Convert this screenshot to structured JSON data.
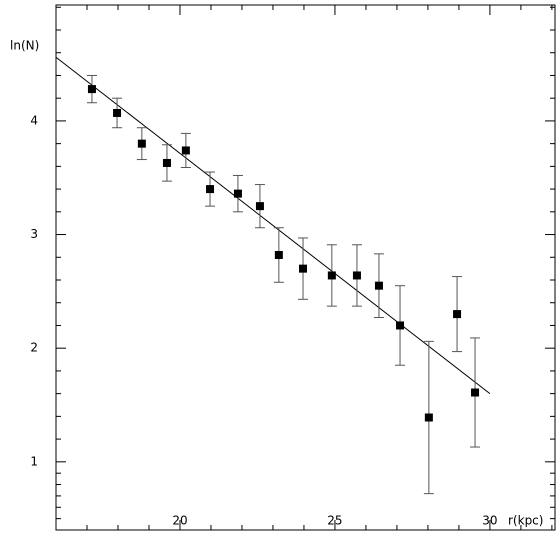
{
  "chart_data": {
    "type": "scatter",
    "xlabel": "r(kpc)",
    "ylabel": "ln(N)",
    "x": [
      17.16,
      17.97,
      18.77,
      19.58,
      20.19,
      20.97,
      21.87,
      22.58,
      23.19,
      23.97,
      24.9,
      25.71,
      26.42,
      27.1,
      28.03,
      28.94,
      29.52
    ],
    "series": [
      {
        "values": [
          4.28,
          4.07,
          3.8,
          3.63,
          3.74,
          3.4,
          3.36,
          3.25,
          2.82,
          2.7,
          2.64,
          2.64,
          2.55,
          2.2,
          1.39,
          2.3,
          1.61
        ],
        "errors": [
          0.12,
          0.13,
          0.14,
          0.16,
          0.15,
          0.15,
          0.16,
          0.19,
          0.24,
          0.27,
          0.27,
          0.27,
          0.28,
          0.35,
          0.67,
          0.33,
          0.48
        ],
        "color": "#000000"
      }
    ],
    "fit_line": {
      "x": [
        16,
        30
      ],
      "y": [
        4.56,
        1.6
      ]
    },
    "xlim": [
      16,
      32.1
    ],
    "ylim": [
      0.4,
      5.02
    ],
    "xticks": [
      20,
      25,
      30
    ],
    "yticks": [
      1,
      2,
      3,
      4
    ],
    "xminorticks": [
      17,
      18,
      19,
      21,
      22,
      23,
      24,
      26,
      27,
      28,
      29,
      31,
      32
    ],
    "yminorticks": [
      0.5,
      0.6,
      0.7,
      0.8,
      0.9,
      1.2,
      1.4,
      1.6,
      1.8,
      2.2,
      2.4,
      2.6,
      2.8,
      3.2,
      3.4,
      3.6,
      3.8,
      4.2,
      4.4,
      4.6,
      4.8,
      5
    ]
  }
}
